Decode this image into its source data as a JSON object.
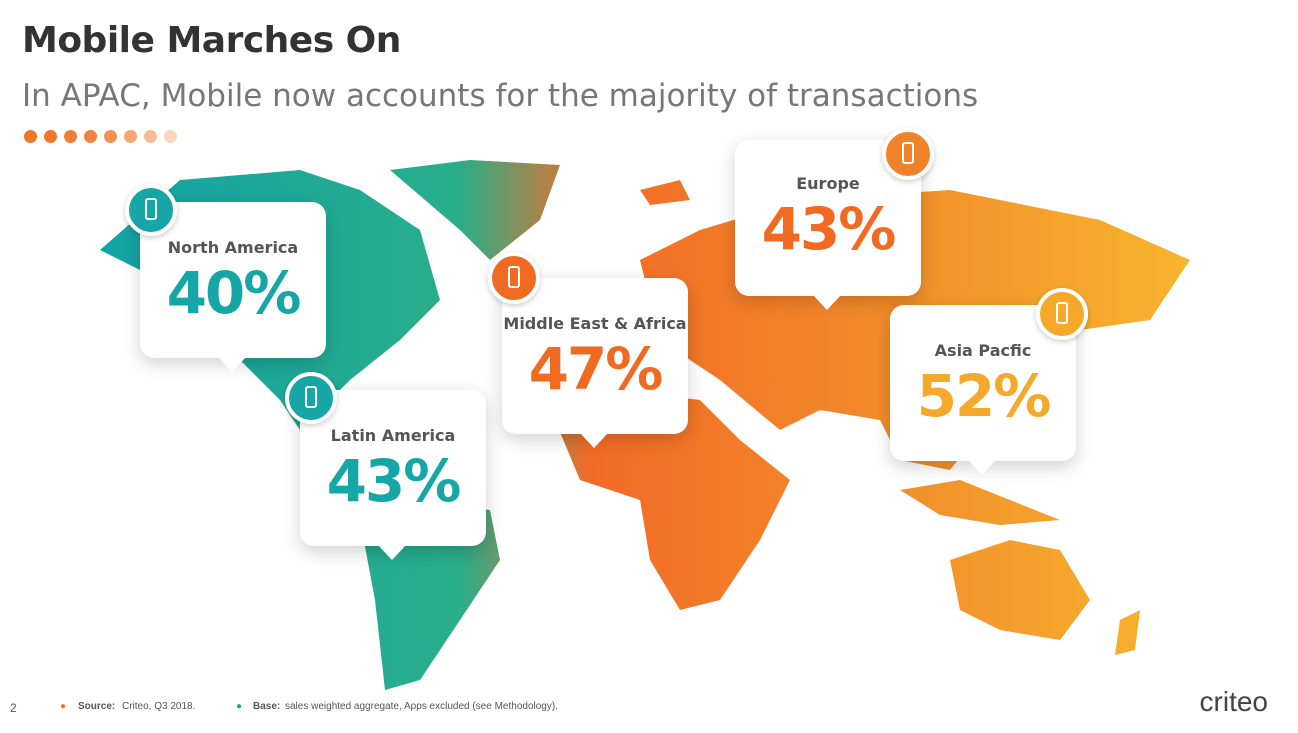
{
  "header": {
    "title": "Mobile Marches On",
    "subtitle": "In APAC, Mobile now accounts for the majority of transactions"
  },
  "regions": [
    {
      "name": "North America",
      "share": "40%"
    },
    {
      "name": "Latin America",
      "share": "43%"
    },
    {
      "name": "Middle East & Africa",
      "share": "47%"
    },
    {
      "name": "Europe",
      "share": "43%"
    },
    {
      "name": "Asia Pacfic",
      "share": "52%"
    }
  ],
  "footer": {
    "page": "2",
    "source_label": "Source:",
    "source": "Criteo, Q3 2018.",
    "base_label": "Base:",
    "base": "sales weighted aggregate, Apps excluded (see Methodology)."
  },
  "logo": "criteo"
}
